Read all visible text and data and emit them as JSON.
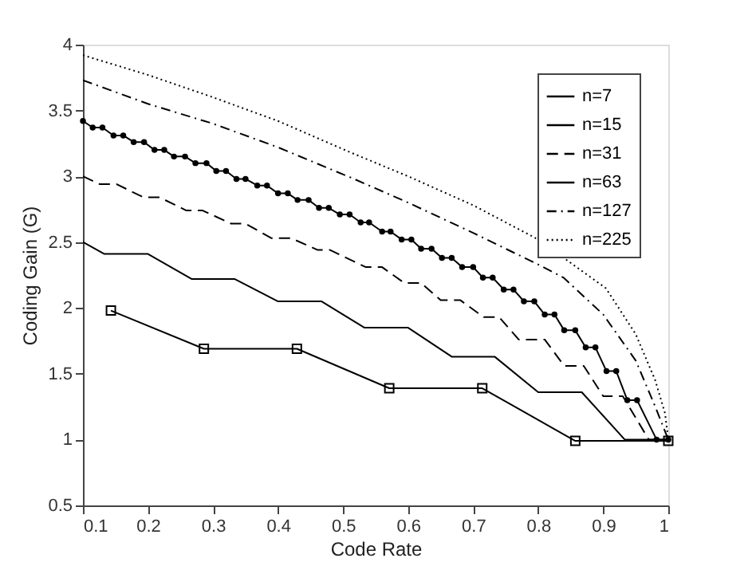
{
  "chart_data": {
    "type": "line",
    "xlabel": "Code Rate",
    "ylabel": "Coding Gain (G)",
    "xlim": [
      0.1,
      1
    ],
    "ylim": [
      0.5,
      4
    ],
    "xticks": [
      0.1,
      0.2,
      0.3,
      0.4,
      0.5,
      0.6,
      0.7,
      0.8,
      0.9,
      1
    ],
    "yticks": [
      0.5,
      1,
      1.5,
      2,
      2.5,
      3,
      3.5,
      4
    ],
    "grid": false,
    "legend": "top right",
    "series": [
      {
        "name": "n=7",
        "color": "#000000",
        "marker": "square",
        "line_style": "solid",
        "x": [
          0.143,
          0.286,
          0.429,
          0.571,
          0.714,
          0.857,
          1.0
        ],
        "values": [
          1.98,
          1.69,
          1.69,
          1.39,
          1.39,
          0.99,
          0.99
        ]
      },
      {
        "name": "n=15",
        "color": "#000000",
        "marker": "none",
        "line_style": "solid",
        "x": [
          0.1,
          0.133,
          0.2,
          0.267,
          0.333,
          0.4,
          0.467,
          0.533,
          0.6,
          0.667,
          0.733,
          0.8,
          0.867,
          0.933,
          1.0
        ],
        "values": [
          2.5,
          2.41,
          2.41,
          2.22,
          2.22,
          2.05,
          2.05,
          1.85,
          1.85,
          1.63,
          1.63,
          1.36,
          1.36,
          1.0,
          1.0
        ]
      },
      {
        "name": "n=31",
        "color": "#000000",
        "marker": "none",
        "line_style": "dashed",
        "x": [
          0.1,
          0.126,
          0.152,
          0.193,
          0.218,
          0.259,
          0.284,
          0.328,
          0.35,
          0.39,
          0.42,
          0.461,
          0.48,
          0.535,
          0.56,
          0.594,
          0.62,
          0.65,
          0.68,
          0.716,
          0.74,
          0.77,
          0.81,
          0.84,
          0.87,
          0.9,
          0.93,
          0.97,
          1.0
        ],
        "values": [
          3.0,
          2.94,
          2.94,
          2.84,
          2.84,
          2.74,
          2.74,
          2.64,
          2.64,
          2.53,
          2.53,
          2.44,
          2.44,
          2.31,
          2.31,
          2.19,
          2.19,
          2.06,
          2.06,
          1.93,
          1.93,
          1.76,
          1.76,
          1.56,
          1.56,
          1.33,
          1.33,
          1.0,
          1.0
        ]
      },
      {
        "name": "n=63",
        "color": "#000000",
        "marker": "circle",
        "line_style": "solid",
        "x": [
          0.1,
          0.115,
          0.13,
          0.147,
          0.162,
          0.178,
          0.194,
          0.21,
          0.225,
          0.24,
          0.257,
          0.273,
          0.29,
          0.305,
          0.32,
          0.336,
          0.35,
          0.368,
          0.383,
          0.4,
          0.415,
          0.43,
          0.447,
          0.463,
          0.478,
          0.495,
          0.51,
          0.527,
          0.54,
          0.56,
          0.573,
          0.59,
          0.605,
          0.62,
          0.636,
          0.652,
          0.667,
          0.683,
          0.7,
          0.715,
          0.73,
          0.747,
          0.762,
          0.778,
          0.794,
          0.81,
          0.825,
          0.84,
          0.857,
          0.873,
          0.888,
          0.905,
          0.92,
          0.937,
          0.952,
          0.982,
          1.0
        ],
        "values": [
          3.42,
          3.37,
          3.37,
          3.31,
          3.31,
          3.26,
          3.26,
          3.2,
          3.2,
          3.15,
          3.15,
          3.1,
          3.1,
          3.04,
          3.04,
          2.98,
          2.98,
          2.93,
          2.93,
          2.87,
          2.87,
          2.82,
          2.82,
          2.76,
          2.76,
          2.71,
          2.71,
          2.65,
          2.65,
          2.58,
          2.58,
          2.52,
          2.52,
          2.45,
          2.45,
          2.38,
          2.38,
          2.31,
          2.31,
          2.23,
          2.23,
          2.14,
          2.14,
          2.05,
          2.05,
          1.95,
          1.95,
          1.83,
          1.83,
          1.7,
          1.7,
          1.52,
          1.52,
          1.3,
          1.3,
          1.0,
          1.0
        ]
      },
      {
        "name": "n=127",
        "color": "#000000",
        "marker": "none",
        "line_style": "dashdot",
        "x": [
          0.1,
          0.2,
          0.3,
          0.4,
          0.512,
          0.6,
          0.7,
          0.8,
          0.839,
          0.9,
          0.95,
          0.98,
          1.0
        ],
        "values": [
          3.73,
          3.55,
          3.4,
          3.22,
          2.99,
          2.8,
          2.57,
          2.33,
          2.23,
          1.95,
          1.6,
          1.25,
          1.0
        ]
      },
      {
        "name": "n=225",
        "color": "#000000",
        "marker": "none",
        "line_style": "dotted",
        "x": [
          0.1,
          0.2,
          0.3,
          0.4,
          0.512,
          0.6,
          0.7,
          0.8,
          0.904,
          0.95,
          0.98,
          0.995,
          1.0
        ],
        "values": [
          3.92,
          3.77,
          3.6,
          3.42,
          3.18,
          3.0,
          2.78,
          2.52,
          2.15,
          1.8,
          1.45,
          1.2,
          1.0
        ]
      }
    ]
  }
}
